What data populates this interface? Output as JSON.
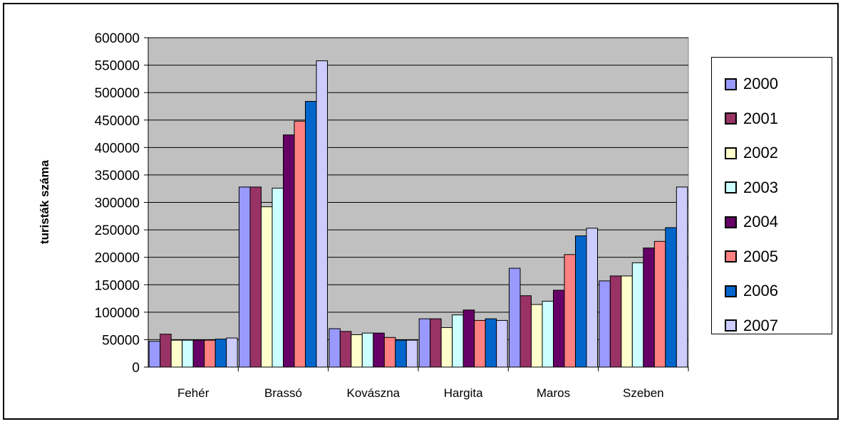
{
  "chart_data": {
    "type": "bar",
    "title": "",
    "xlabel": "",
    "ylabel": "turisták száma",
    "ylim": [
      0,
      600000
    ],
    "yticks": [
      "0",
      "50000",
      "100000",
      "150000",
      "200000",
      "250000",
      "300000",
      "350000",
      "400000",
      "450000",
      "500000",
      "550000",
      "600000"
    ],
    "grid": true,
    "legend_position": "right",
    "plot_background": "#C0C0C0",
    "categories": [
      "Fehér",
      "Brassó",
      "Kovászna",
      "Hargita",
      "Maros",
      "Szeben"
    ],
    "series": [
      {
        "name": "2000",
        "color": "#9999FF",
        "values": [
          47000,
          328000,
          70000,
          88000,
          180000,
          157000
        ]
      },
      {
        "name": "2001",
        "color": "#993366",
        "values": [
          60000,
          328000,
          65000,
          88000,
          130000,
          166000
        ]
      },
      {
        "name": "2002",
        "color": "#FFFFCC",
        "values": [
          49000,
          292000,
          59000,
          72000,
          114000,
          166000
        ]
      },
      {
        "name": "2003",
        "color": "#CCFFFF",
        "values": [
          49000,
          326000,
          62000,
          95000,
          120000,
          190000
        ]
      },
      {
        "name": "2004",
        "color": "#660066",
        "values": [
          49000,
          423000,
          62000,
          104000,
          140000,
          217000
        ]
      },
      {
        "name": "2005",
        "color": "#FF8080",
        "values": [
          49000,
          448000,
          54000,
          85000,
          205000,
          229000
        ]
      },
      {
        "name": "2006",
        "color": "#0066CC",
        "values": [
          51000,
          484000,
          49000,
          88000,
          239000,
          254000
        ]
      },
      {
        "name": "2007",
        "color": "#CCCCFF",
        "values": [
          53000,
          558000,
          49000,
          85000,
          253000,
          328000
        ]
      }
    ]
  }
}
